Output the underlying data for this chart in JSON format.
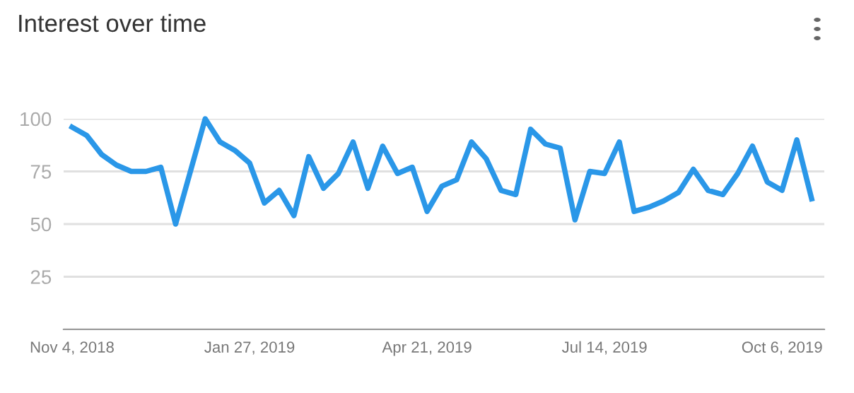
{
  "chart_data": {
    "type": "line",
    "title": "Interest over time",
    "x": [
      "2018-11-04",
      "2018-11-11",
      "2018-11-18",
      "2018-11-25",
      "2018-12-02",
      "2018-12-09",
      "2018-12-16",
      "2018-12-23",
      "2018-12-30",
      "2019-01-06",
      "2019-01-13",
      "2019-01-20",
      "2019-01-27",
      "2019-02-03",
      "2019-02-10",
      "2019-02-17",
      "2019-02-24",
      "2019-03-03",
      "2019-03-10",
      "2019-03-17",
      "2019-03-24",
      "2019-03-31",
      "2019-04-07",
      "2019-04-14",
      "2019-04-21",
      "2019-04-28",
      "2019-05-05",
      "2019-05-12",
      "2019-05-19",
      "2019-05-26",
      "2019-06-02",
      "2019-06-09",
      "2019-06-16",
      "2019-06-23",
      "2019-06-30",
      "2019-07-07",
      "2019-07-14",
      "2019-07-21",
      "2019-07-28",
      "2019-08-04",
      "2019-08-11",
      "2019-08-18",
      "2019-08-25",
      "2019-09-01",
      "2019-09-08",
      "2019-09-15",
      "2019-09-22",
      "2019-09-29",
      "2019-10-06",
      "2019-10-13",
      "2019-10-20"
    ],
    "series": [
      {
        "color": "#2a97e8",
        "values": [
          96,
          92,
          83,
          78,
          75,
          75,
          77,
          50,
          75,
          100,
          89,
          85,
          79,
          60,
          66,
          54,
          82,
          67,
          74,
          89,
          67,
          87,
          74,
          77,
          56,
          68,
          71,
          89,
          81,
          66,
          64,
          95,
          88,
          86,
          52,
          75,
          74,
          89,
          56,
          58,
          61,
          65,
          76,
          66,
          64,
          74,
          87,
          70,
          66,
          90,
          62
        ]
      }
    ],
    "xlim": [
      "2018-10-31",
      "2019-10-26"
    ],
    "xticks": [
      {
        "value": "2018-11-04",
        "label": "Nov 4, 2018"
      },
      {
        "value": "2019-01-27",
        "label": "Jan 27, 2019"
      },
      {
        "value": "2019-04-21",
        "label": "Apr 21, 2019"
      },
      {
        "value": "2019-07-14",
        "label": "Jul 14, 2019"
      },
      {
        "value": "2019-10-06",
        "label": "Oct 6, 2019"
      }
    ],
    "ylim": [
      0,
      100
    ],
    "yticks": [
      {
        "value": 0,
        "label": null
      },
      25,
      50,
      75,
      100
    ],
    "grid": "y",
    "marker": "none",
    "line_style": "solid"
  }
}
